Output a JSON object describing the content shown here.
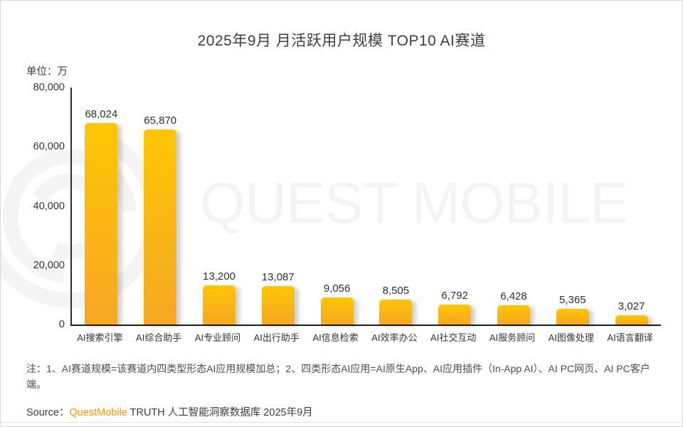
{
  "title": "2025年9月 月活跃用户规模 TOP10 AI赛道",
  "unit_label": "单位：万",
  "watermark_text": "QUEST MOBILE",
  "chart_data": {
    "type": "bar",
    "title": "2025年9月 月活跃用户规模 TOP10 AI赛道",
    "unit": "万",
    "categories": [
      "AI搜索引擎",
      "AI综合助手",
      "AI专业顾问",
      "AI出行助手",
      "AI信息检索",
      "AI效率办公",
      "AI社交互动",
      "AI服务顾问",
      "AI图像处理",
      "AI语言翻译"
    ],
    "values": [
      68024,
      65870,
      13200,
      13087,
      9056,
      8505,
      6792,
      6428,
      5365,
      3027
    ],
    "value_labels": [
      "68,024",
      "65,870",
      "13,200",
      "13,087",
      "9,056",
      "8,505",
      "6,792",
      "6,428",
      "5,365",
      "3,027"
    ],
    "ylim": [
      0,
      80000
    ],
    "yticks": [
      80000,
      60000,
      40000,
      20000,
      0
    ],
    "ytick_labels": [
      "80,000",
      "60,000",
      "40,000",
      "20,000",
      "0"
    ],
    "grid": false,
    "legend": null,
    "bar_color_top": "#FFC603",
    "bar_color_bottom": "#F6A723"
  },
  "note": "注：1、AI赛道规模=该赛道内四类型形态AI应用规模加总；2、四类形态AI应用=AI原生App、AI应用插件（In-App AI）、AI PC网页、AI PC客户端。",
  "source": {
    "prefix": "Source：",
    "brand": "QuestMobile",
    "suffix": " TRUTH 人工智能洞察数据库 2025年9月",
    "brand_color": "#FF9800"
  }
}
